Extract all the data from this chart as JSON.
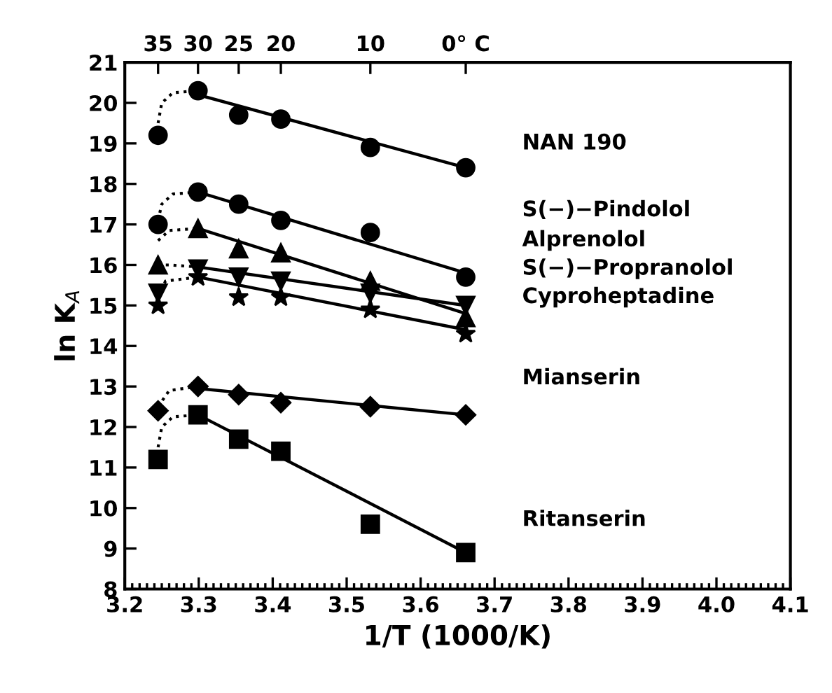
{
  "chart_data": {
    "type": "scatter",
    "xlabel": "1/T (1000/K)",
    "ylabel": "ln K$_{A}$",
    "xlim": [
      3.2,
      4.1
    ],
    "xticks": [
      {
        "value": 3.2,
        "label": "3.2"
      },
      {
        "value": 3.3,
        "label": "3.3"
      },
      {
        "value": 3.4,
        "label": "3.4"
      },
      {
        "value": 3.5,
        "label": "3.5"
      },
      {
        "value": 3.6,
        "label": "3.6"
      },
      {
        "value": 3.7,
        "label": "3.7"
      },
      {
        "value": 3.8,
        "label": "3.8"
      },
      {
        "value": 3.9,
        "label": "3.9"
      },
      {
        "value": 4.0,
        "label": "4.0"
      },
      {
        "value": 4.1,
        "label": "4.1"
      }
    ],
    "ylim": [
      8,
      21
    ],
    "yticks": [
      8,
      9,
      10,
      11,
      12,
      13,
      14,
      15,
      16,
      17,
      18,
      19,
      20,
      21
    ],
    "grid": false,
    "legend": false,
    "series": [
      {
        "marker": "circle",
        "color": "#000000",
        "x": [
          3.245,
          3.299,
          3.354,
          3.411,
          3.532,
          3.661
        ],
        "values": [
          19.2,
          20.3,
          19.7,
          19.6,
          18.9,
          18.4
        ]
      },
      {
        "marker": "circle",
        "color": "#000000",
        "x": [
          3.245,
          3.299,
          3.354,
          3.411,
          3.532,
          3.661
        ],
        "values": [
          17.0,
          17.8,
          17.5,
          17.1,
          16.8,
          15.7
        ]
      },
      {
        "marker": "triangle",
        "color": "#000000",
        "x": [
          3.245,
          3.299,
          3.354,
          3.411,
          3.532,
          3.661
        ],
        "values": [
          16.0,
          16.9,
          16.4,
          16.3,
          15.6,
          14.7
        ]
      },
      {
        "marker": "triangle_down",
        "color": "#000000",
        "x": [
          3.245,
          3.299,
          3.354,
          3.411,
          3.532,
          3.661
        ],
        "values": [
          15.3,
          15.9,
          15.7,
          15.6,
          15.3,
          15.0
        ]
      },
      {
        "marker": "star",
        "color": "#000000",
        "x": [
          3.245,
          3.299,
          3.354,
          3.411,
          3.532,
          3.661
        ],
        "values": [
          15.0,
          15.7,
          15.2,
          15.2,
          14.9,
          14.3
        ]
      },
      {
        "marker": "diamond",
        "color": "#000000",
        "x": [
          3.245,
          3.299,
          3.354,
          3.411,
          3.532,
          3.661
        ],
        "values": [
          12.4,
          13.0,
          12.8,
          12.6,
          12.5,
          12.3
        ]
      },
      {
        "marker": "square",
        "color": "#000000",
        "x": [
          3.245,
          3.299,
          3.354,
          3.411,
          3.532,
          3.661
        ],
        "values": [
          11.2,
          12.3,
          11.7,
          11.4,
          9.6,
          8.9
        ]
      },
      {
        "type": "line",
        "line_style": "solid",
        "color": "#000000",
        "x": [
          3.299,
          3.661
        ],
        "values": [
          20.2,
          18.4
        ]
      },
      {
        "type": "line",
        "line_style": "solid",
        "color": "#000000",
        "x": [
          3.299,
          3.661
        ],
        "values": [
          17.8,
          15.8
        ]
      },
      {
        "type": "line",
        "line_style": "solid",
        "color": "#000000",
        "x": [
          3.299,
          3.661
        ],
        "values": [
          16.9,
          14.8
        ]
      },
      {
        "type": "line",
        "line_style": "solid",
        "color": "#000000",
        "x": [
          3.299,
          3.661
        ],
        "values": [
          15.95,
          15.0
        ]
      },
      {
        "type": "line",
        "line_style": "solid",
        "color": "#000000",
        "x": [
          3.299,
          3.661
        ],
        "values": [
          15.7,
          14.4
        ]
      },
      {
        "type": "line",
        "line_style": "solid",
        "color": "#000000",
        "x": [
          3.299,
          3.661
        ],
        "values": [
          12.95,
          12.3
        ]
      },
      {
        "type": "line",
        "line_style": "solid",
        "color": "#000000",
        "x": [
          3.299,
          3.661
        ],
        "values": [
          12.3,
          8.9
        ]
      },
      {
        "type": "line",
        "line_style": "dotted",
        "color": "#000000",
        "x": [
          3.245,
          3.25,
          3.265,
          3.299
        ],
        "values": [
          19.5,
          20.0,
          20.25,
          20.3
        ]
      },
      {
        "type": "line",
        "line_style": "dotted",
        "color": "#000000",
        "x": [
          3.245,
          3.25,
          3.265,
          3.299
        ],
        "values": [
          17.1,
          17.5,
          17.75,
          17.8
        ]
      },
      {
        "type": "line",
        "line_style": "dotted",
        "color": "#000000",
        "x": [
          3.245,
          3.26,
          3.299
        ],
        "values": [
          16.6,
          16.85,
          16.9
        ]
      },
      {
        "type": "line",
        "line_style": "dotted",
        "color": "#000000",
        "x": [
          3.245,
          3.26,
          3.299
        ],
        "values": [
          16.0,
          16.0,
          15.95
        ]
      },
      {
        "type": "line",
        "line_style": "dotted",
        "color": "#000000",
        "x": [
          3.245,
          3.255,
          3.299
        ],
        "values": [
          15.2,
          15.6,
          15.7
        ]
      },
      {
        "type": "line",
        "line_style": "dotted",
        "color": "#000000",
        "x": [
          3.245,
          3.26,
          3.299
        ],
        "values": [
          12.5,
          12.9,
          13.0
        ]
      },
      {
        "type": "line",
        "line_style": "dotted",
        "color": "#000000",
        "x": [
          3.245,
          3.25,
          3.265,
          3.299
        ],
        "values": [
          11.5,
          12.0,
          12.25,
          12.3
        ]
      }
    ],
    "annotations": [
      "NAN 190",
      "S(−)−Pindolol",
      "Alprenolol",
      "S(−)−Propranolol",
      "Cyproheptadine",
      "Mianserin",
      "Ritanserin",
      "35",
      "30",
      "25",
      "20",
      "10",
      "0° C"
    ]
  }
}
